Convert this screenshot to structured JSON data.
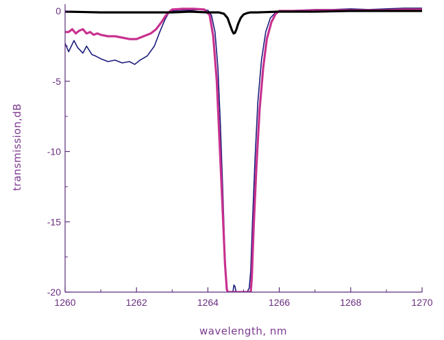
{
  "chart_data": {
    "type": "line",
    "title": "",
    "xlabel": "wavelength, nm",
    "ylabel": "transmission,dB",
    "xlim": [
      1260,
      1270
    ],
    "ylim": [
      -20,
      0.3
    ],
    "xticks": [
      1260,
      1262,
      1264,
      1266,
      1268,
      1270
    ],
    "xtick_labels": [
      "1260",
      "1262",
      "1264",
      "1266",
      "1268",
      "1270"
    ],
    "yticks": [
      0,
      -5,
      -10,
      -15,
      -20
    ],
    "ytick_labels": [
      "0",
      "-5",
      "-10",
      "-15",
      "-20"
    ],
    "grid": false,
    "legend": "none",
    "colors": {
      "axis": "#5a2c7a",
      "tick_text": "#6a2d7f",
      "label_text": "#7b3a8f"
    },
    "series": [
      {
        "color": "#1a1a7a",
        "stroke": "thin",
        "x": [
          1260.0,
          1260.1,
          1260.25,
          1260.35,
          1260.5,
          1260.6,
          1260.75,
          1260.85,
          1261.0,
          1261.2,
          1261.4,
          1261.6,
          1261.8,
          1261.95,
          1262.1,
          1262.3,
          1262.5,
          1262.65,
          1262.8,
          1262.9,
          1263.0,
          1263.2,
          1263.5,
          1263.8,
          1264.0,
          1264.1,
          1264.2,
          1264.28,
          1264.35,
          1264.42,
          1264.48,
          1264.52,
          1264.56,
          1264.7,
          1264.73,
          1264.76,
          1264.79,
          1264.85,
          1265.0,
          1265.1,
          1265.16,
          1265.2,
          1265.25,
          1265.32,
          1265.4,
          1265.5,
          1265.62,
          1265.75,
          1265.9,
          1266.0,
          1266.5,
          1267.0,
          1267.5,
          1268.0,
          1268.5,
          1269.0,
          1269.5,
          1270.0
        ],
        "y": [
          -2.3,
          -2.9,
          -2.1,
          -2.6,
          -3.0,
          -2.5,
          -3.1,
          -3.2,
          -3.4,
          -3.6,
          -3.5,
          -3.7,
          -3.6,
          -3.8,
          -3.5,
          -3.2,
          -2.5,
          -1.5,
          -0.6,
          -0.15,
          0.0,
          0.05,
          0.05,
          0.1,
          0.05,
          -0.3,
          -1.5,
          -4.0,
          -8.0,
          -13.0,
          -17.5,
          -19.5,
          -20.0,
          -20.0,
          -19.5,
          -19.6,
          -20.0,
          -20.0,
          -20.0,
          -20.0,
          -19.7,
          -18.5,
          -15.0,
          -10.5,
          -6.5,
          -3.5,
          -1.5,
          -0.5,
          -0.1,
          0.0,
          0.05,
          0.1,
          0.1,
          0.15,
          0.1,
          0.15,
          0.2,
          0.2
        ]
      },
      {
        "color": "#c8318f",
        "stroke": "thick",
        "x": [
          1260.0,
          1260.1,
          1260.2,
          1260.3,
          1260.4,
          1260.5,
          1260.6,
          1260.7,
          1260.8,
          1260.9,
          1261.0,
          1261.2,
          1261.4,
          1261.6,
          1261.8,
          1262.0,
          1262.2,
          1262.4,
          1262.55,
          1262.7,
          1262.8,
          1262.9,
          1263.0,
          1263.3,
          1263.6,
          1263.9,
          1264.05,
          1264.15,
          1264.25,
          1264.33,
          1264.41,
          1264.48,
          1264.53,
          1264.56,
          1265.2,
          1265.23,
          1265.28,
          1265.36,
          1265.45,
          1265.55,
          1265.65,
          1265.78,
          1265.9,
          1266.0,
          1266.5,
          1267.0,
          1267.5,
          1268.0,
          1268.5,
          1269.0,
          1269.5,
          1270.0
        ],
        "y": [
          -1.5,
          -1.5,
          -1.3,
          -1.6,
          -1.4,
          -1.3,
          -1.6,
          -1.5,
          -1.7,
          -1.6,
          -1.7,
          -1.8,
          -1.8,
          -1.9,
          -2.0,
          -2.0,
          -1.8,
          -1.6,
          -1.3,
          -0.8,
          -0.4,
          -0.1,
          0.1,
          0.15,
          0.15,
          0.1,
          -0.3,
          -1.8,
          -5.0,
          -9.5,
          -14.0,
          -18.0,
          -19.8,
          -20.0,
          -20.0,
          -19.0,
          -15.5,
          -11.0,
          -7.0,
          -4.0,
          -2.0,
          -0.8,
          -0.2,
          0.0,
          0.0,
          0.05,
          0.05,
          0.05,
          0.05,
          0.05,
          0.1,
          0.1
        ]
      },
      {
        "color": "#000000",
        "stroke": "thick",
        "x": [
          1260.0,
          1261.0,
          1262.0,
          1263.0,
          1263.5,
          1264.0,
          1264.3,
          1264.45,
          1264.55,
          1264.62,
          1264.68,
          1264.72,
          1264.76,
          1264.8,
          1264.85,
          1264.92,
          1265.0,
          1265.1,
          1265.2,
          1265.4,
          1266.0,
          1267.0,
          1268.0,
          1269.0,
          1270.0
        ],
        "y": [
          -0.05,
          -0.1,
          -0.1,
          -0.1,
          -0.05,
          -0.1,
          -0.1,
          -0.2,
          -0.5,
          -1.0,
          -1.4,
          -1.6,
          -1.55,
          -1.3,
          -0.9,
          -0.5,
          -0.25,
          -0.15,
          -0.1,
          -0.1,
          -0.05,
          -0.05,
          0.0,
          0.0,
          0.0
        ]
      }
    ]
  }
}
